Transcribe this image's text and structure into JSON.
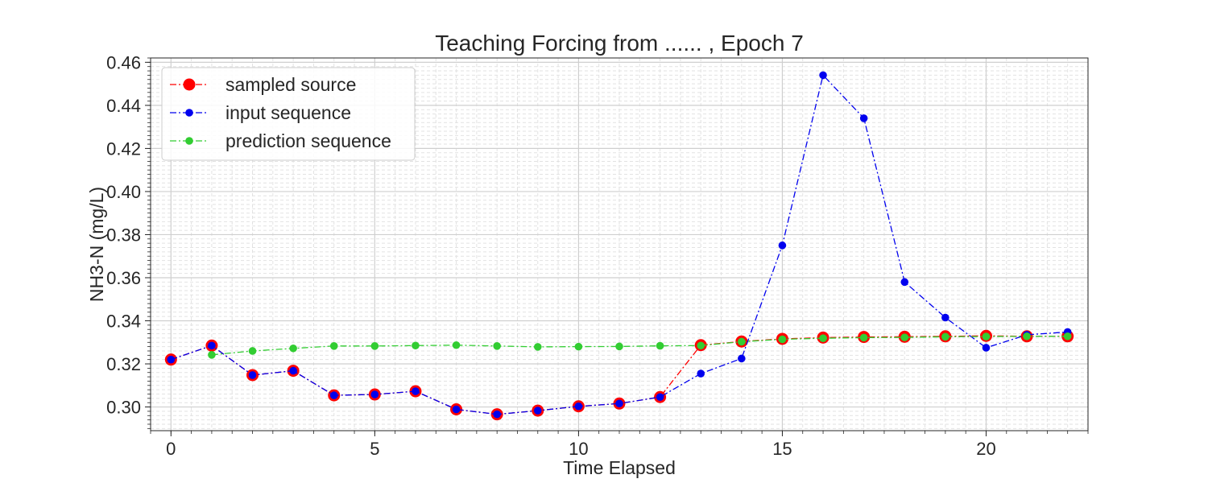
{
  "chart_data": {
    "type": "line",
    "title": "Teaching Forcing from ...... , Epoch 7",
    "xlabel": "Time Elapsed",
    "ylabel": "NH3-N (mg/L)",
    "xlim": [
      -0.5,
      22.5
    ],
    "ylim": [
      0.289,
      0.462
    ],
    "xticks": [
      0,
      5,
      10,
      15,
      20
    ],
    "yticks": [
      0.3,
      0.32,
      0.34,
      0.36,
      0.38,
      0.4,
      0.42,
      0.44,
      0.46
    ],
    "ytick_labels": [
      "0.30",
      "0.32",
      "0.34",
      "0.36",
      "0.38",
      "0.40",
      "0.42",
      "0.44",
      "0.46"
    ],
    "grid": true,
    "legend_position": "top-left",
    "series": [
      {
        "name": "sampled source",
        "color": "#ff0000",
        "marker": "large-circle",
        "x": [
          0,
          1,
          2,
          3,
          4,
          5,
          6,
          7,
          8,
          9,
          10,
          11,
          12,
          13,
          14,
          15,
          16,
          17,
          18,
          19,
          20,
          21,
          22
        ],
        "values": [
          0.322,
          0.3285,
          0.3148,
          0.3168,
          0.3054,
          0.3058,
          0.3073,
          0.2989,
          0.2966,
          0.2983,
          0.3003,
          0.3016,
          0.3046,
          0.3287,
          0.3304,
          0.3316,
          0.3322,
          0.3325,
          0.3326,
          0.3328,
          0.333,
          0.3328,
          0.3328
        ]
      },
      {
        "name": "input sequence",
        "color": "#0000ee",
        "marker": "circle",
        "x": [
          0,
          1,
          2,
          3,
          4,
          5,
          6,
          7,
          8,
          9,
          10,
          11,
          12,
          13,
          14,
          15,
          16,
          17,
          18,
          19,
          20,
          21,
          22
        ],
        "values": [
          0.322,
          0.3285,
          0.3148,
          0.3168,
          0.3054,
          0.3058,
          0.3073,
          0.2989,
          0.2966,
          0.2983,
          0.3003,
          0.3016,
          0.3046,
          0.3155,
          0.3225,
          0.375,
          0.454,
          0.434,
          0.358,
          0.3415,
          0.3275,
          0.3335,
          0.3348
        ]
      },
      {
        "name": "prediction sequence",
        "color": "#32cd32",
        "marker": "circle",
        "x": [
          1,
          2,
          3,
          4,
          5,
          6,
          7,
          8,
          9,
          10,
          11,
          12,
          13,
          14,
          15,
          16,
          17,
          18,
          19,
          20,
          21,
          22
        ],
        "values": [
          0.3242,
          0.326,
          0.3272,
          0.3283,
          0.3283,
          0.3285,
          0.3287,
          0.3283,
          0.3279,
          0.328,
          0.3281,
          0.3284,
          0.3285,
          0.3303,
          0.3314,
          0.3319,
          0.3322,
          0.3323,
          0.3326,
          0.3327,
          0.3328,
          0.3328
        ]
      }
    ]
  }
}
